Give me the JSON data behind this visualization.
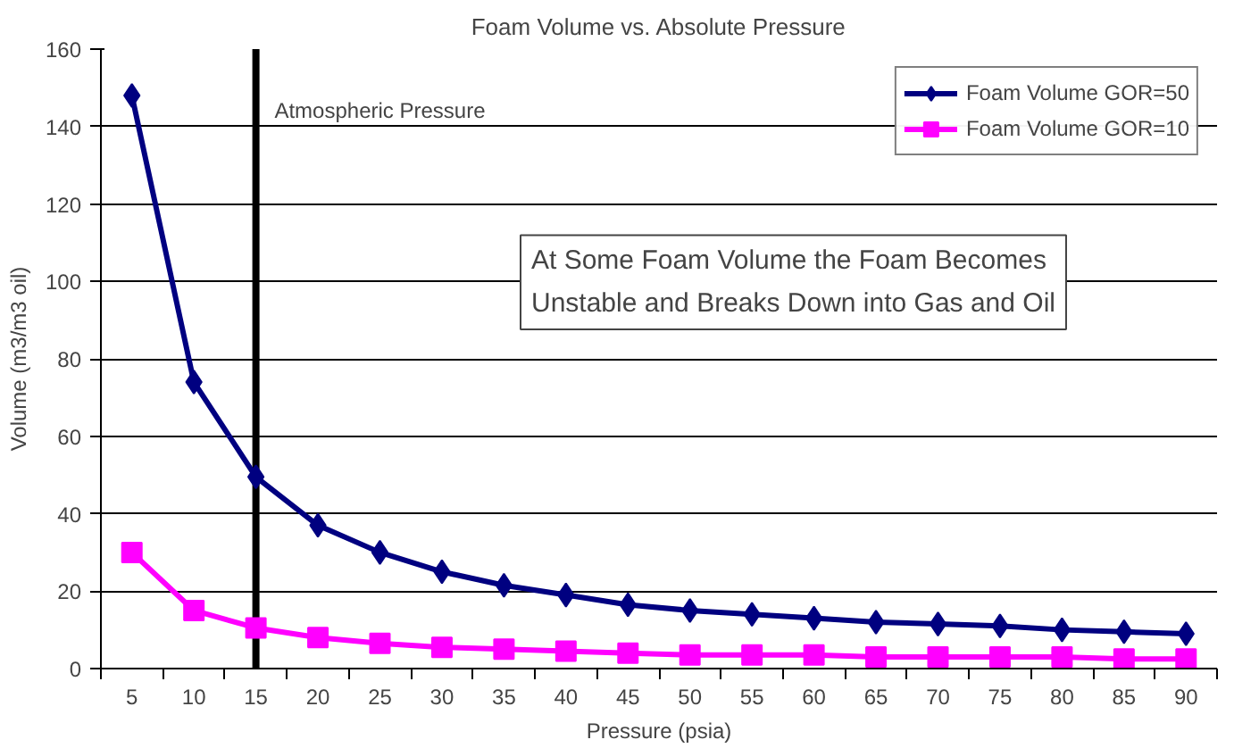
{
  "chart_data": {
    "type": "line",
    "title": "Foam Volume vs. Absolute Pressure",
    "xlabel": "Pressure (psia)",
    "ylabel": "Volume (m3/m3 oil)",
    "categories": [
      "5",
      "10",
      "15",
      "20",
      "25",
      "30",
      "35",
      "40",
      "45",
      "50",
      "55",
      "60",
      "65",
      "70",
      "75",
      "80",
      "85",
      "90"
    ],
    "series": [
      {
        "name": "Foam Volume GOR=50",
        "color": "#000080",
        "marker": "diamond",
        "values": [
          148,
          74,
          49.5,
          37,
          30,
          25,
          21.5,
          19,
          16.5,
          15,
          14,
          13,
          12,
          11.5,
          11,
          10,
          9.5,
          9
        ]
      },
      {
        "name": "Foam Volume GOR=10",
        "color": "#ff00ff",
        "marker": "square",
        "values": [
          30,
          15,
          10.5,
          8,
          6.5,
          5.5,
          5,
          4.5,
          4,
          3.5,
          3.5,
          3.5,
          3,
          3,
          3,
          3,
          2.5,
          2.5
        ]
      }
    ],
    "ylim": [
      0,
      160
    ],
    "yticks": [
      0,
      20,
      40,
      60,
      80,
      100,
      120,
      140,
      160
    ],
    "grid": "y",
    "legend": "top right",
    "ref_lines": [
      {
        "axis": "x",
        "value": "15",
        "label": "Atmospheric Pressure",
        "color": "#000000"
      }
    ],
    "annotations": [
      "At Some Foam Volume the Foam Becomes\nUnstable and Breaks Down into Gas and Oil"
    ]
  }
}
